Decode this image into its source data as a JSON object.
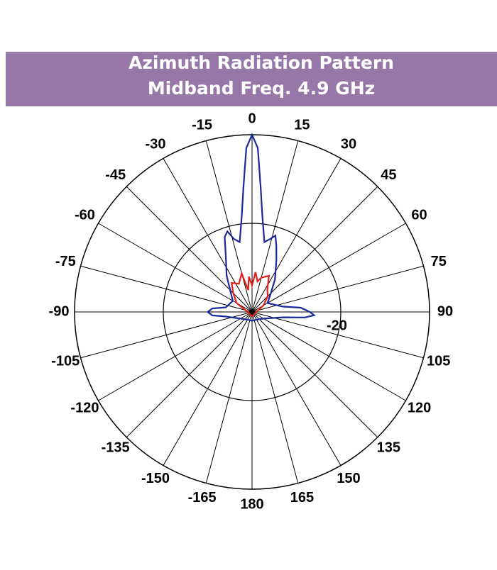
{
  "chart_data": {
    "type": "polar",
    "title": "Azimuth Radiation Pattern",
    "subtitle": "Midband Freq. 4.9 GHz",
    "rlim": [
      -40,
      0
    ],
    "rticks": [
      -20
    ],
    "angle_ticks": [
      0,
      15,
      30,
      45,
      60,
      75,
      90,
      105,
      120,
      135,
      150,
      165,
      180,
      -165,
      -150,
      -135,
      -120,
      -105,
      -90,
      -75,
      -60,
      -45,
      -30,
      -15
    ],
    "series": [
      {
        "color": "#1a2a9a",
        "theta": [
          -180,
          -150,
          -120,
          -100,
          -95,
          -90,
          -85,
          -80,
          -60,
          -45,
          -35,
          -25,
          -20,
          -17,
          -14,
          -10,
          -6,
          -4,
          -2,
          0,
          2,
          4,
          6,
          10,
          14,
          17,
          20,
          25,
          35,
          45,
          60,
          80,
          85,
          90,
          93,
          96,
          100,
          120,
          150,
          180
        ],
        "values": [
          -38,
          -38,
          -37,
          -34,
          -31,
          -30,
          -31,
          -34,
          -35,
          -33,
          -30,
          -26,
          -22,
          -21,
          -23,
          -24,
          -18,
          -12,
          -3,
          0,
          -3,
          -12,
          -18,
          -24,
          -23,
          -22,
          -24,
          -27,
          -31,
          -34,
          -36,
          -33,
          -29,
          -27,
          -26,
          -28,
          -33,
          -37,
          -38,
          -38
        ]
      },
      {
        "color": "#e0201a",
        "theta": [
          -180,
          -90,
          -60,
          -45,
          -35,
          -25,
          -15,
          -10,
          -5,
          0,
          5,
          10,
          15,
          25,
          35,
          45,
          60,
          90,
          180
        ],
        "values": [
          -39,
          -39,
          -36,
          -34,
          -32,
          -33,
          -31,
          -35,
          -32,
          -34,
          -31,
          -33,
          -32,
          -31,
          -34,
          -35,
          -37,
          -39,
          -39
        ]
      }
    ]
  }
}
